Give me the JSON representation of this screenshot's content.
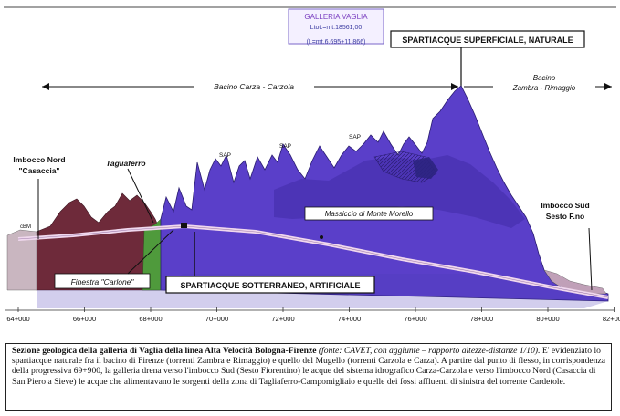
{
  "gallery_box": {
    "name": "GALLERIA VAGLIA",
    "total_length": "Ltot.=mt.18561,00",
    "split": "(L=mt.6.695+11.866)"
  },
  "labels": {
    "spartiacque_superficiale": "SPARTIACQUE SUPERFICIALE, NATURALE",
    "bacino_carza": "Bacino Carza - Carzola",
    "bacino_zambra_1": "Bacino",
    "bacino_zambra_2": "Zambra - Rimaggio",
    "imbocco_nord_1": "Imbocco Nord",
    "imbocco_nord_2": "\"Casaccia\"",
    "tagliaferro": "Tagliaferro",
    "imbocco_sud_1": "Imbocco Sud",
    "imbocco_sud_2": "Sesto F.no",
    "finestra": "Finestra \"Carlone\"",
    "spartiacque_sotterraneo": "SPARTIACQUE SOTTERRANEO, ARTIFICIALE",
    "massiccio": "Massiccio di Monte Morello",
    "sap_1": "SAP",
    "sap_2": "SAP",
    "sap_3": "SAP",
    "cbm": "cBM"
  },
  "chainages": [
    "64+000",
    "66+000",
    "68+000",
    "70+000",
    "72+000",
    "74+000",
    "76+000",
    "78+000",
    "80+000",
    "82+000"
  ],
  "colors": {
    "massif": "#5a3fc9",
    "massif_dark": "#3a2898",
    "north_hills": "#6e2a3a",
    "green": "#4f9a3c",
    "tunnel": "#f0d8ee",
    "sky_line": "#111111"
  },
  "caption": {
    "title": "Sezione geologica della galleria di Vaglia della linea Alta Velocità Bologna-Firenze",
    "source": " (fonte: CAVET, con aggiunte – rapporto altezze-distanze 1/10).",
    "body": " E' evidenziato lo spartiacque naturale fra il bacino di Firenze (torrenti Zambra e Rimaggio) e quello del Mugello (torrenti Carzola e Carza). A partire dal punto di flesso, in corrispondenza della progressiva 69+900, la galleria drena verso l'imbocco Sud (Sesto Fiorentino) le acque del sistema idrografico Carza-Carzola e verso l'imbocco Nord (Casaccia di San Piero a Sieve) le acque che alimentavano le sorgenti della zona di Tagliaferro-Campomigliaio e quelle dei fossi affluenti di sinistra del torrente Cardetole."
  }
}
